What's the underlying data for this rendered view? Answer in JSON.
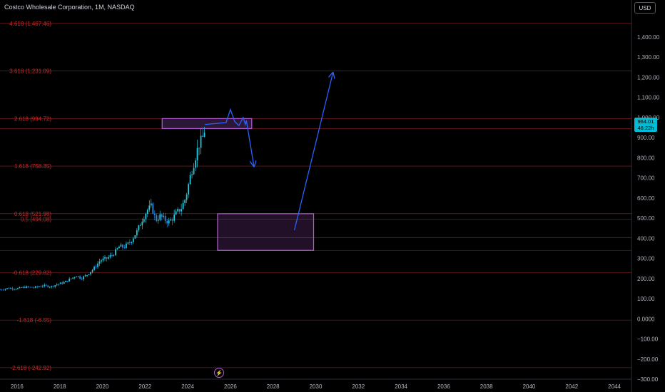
{
  "header": {
    "title": "Costco Wholesale Corporation, 1M, NASDAQ",
    "currency": "USD"
  },
  "price_tag": {
    "price": "964.01",
    "countdown": "46:22h"
  },
  "colors": {
    "up": "#26a69a",
    "candle": "#1e88e5",
    "fib": "#b22833",
    "fib_text": "#c42b2b",
    "zone": "#b55bd6",
    "arrow": "#2962ff",
    "axis_text": "#b2b5be",
    "grid": "#1a1a1a"
  },
  "icons": {
    "flash": "lightning-icon"
  },
  "chart_data": {
    "type": "candlestick",
    "title": "Costco Wholesale Corporation, 1M, NASDAQ",
    "x_axis": {
      "type": "time",
      "range": [
        2015.2,
        2044.8
      ],
      "ticks": [
        "2016",
        "2018",
        "2020",
        "2022",
        "2024",
        "2026",
        "2028",
        "2030",
        "2032",
        "2034",
        "2036",
        "2038",
        "2040",
        "2042",
        "2044"
      ]
    },
    "y_axis": {
      "range": [
        -300,
        1520
      ],
      "ticks": [
        "1,400.00",
        "1,300.00",
        "1,200.00",
        "1,100.00",
        "1,000.00",
        "900.00",
        "800.00",
        "700.00",
        "600.00",
        "500.00",
        "400.00",
        "300.00",
        "200.00",
        "100.00",
        "0.0000",
        "−100.00",
        "−200.00",
        "−300.00"
      ]
    },
    "fib_levels": [
      {
        "label": "4.618 (1,467.46)",
        "value": 1467.46
      },
      {
        "label": "3.618 (1,231.09)",
        "value": 1231.09
      },
      {
        "label": "2.618 (994.72)",
        "value": 994.72
      },
      {
        "label": "1.618 (758.35)",
        "value": 758.35
      },
      {
        "label": "0.618 (521.98)",
        "value": 521.98
      },
      {
        "label": "0.5 (494.08)",
        "value": 494.08
      },
      {
        "label": "-0.618 (229.82)",
        "value": 229.82
      },
      {
        "label": "-1.618 (-6.55)",
        "value": -6.55
      },
      {
        "label": "-2.618 (-242.92)",
        "value": -242.92
      }
    ],
    "extra_lines": [
      945,
      403,
      340
    ],
    "price_path": [
      [
        2015.2,
        145
      ],
      [
        2015.6,
        152
      ],
      [
        2016.0,
        150
      ],
      [
        2016.4,
        158
      ],
      [
        2016.8,
        155
      ],
      [
        2017.2,
        165
      ],
      [
        2017.6,
        160
      ],
      [
        2017.9,
        172
      ],
      [
        2018.2,
        180
      ],
      [
        2018.5,
        198
      ],
      [
        2018.8,
        215
      ],
      [
        2019.0,
        200
      ],
      [
        2019.3,
        220
      ],
      [
        2019.6,
        250
      ],
      [
        2019.9,
        290
      ],
      [
        2020.2,
        300
      ],
      [
        2020.5,
        320
      ],
      [
        2020.8,
        360
      ],
      [
        2021.0,
        355
      ],
      [
        2021.3,
        380
      ],
      [
        2021.6,
        430
      ],
      [
        2021.9,
        500
      ],
      [
        2022.1,
        540
      ],
      [
        2022.3,
        560
      ],
      [
        2022.5,
        490
      ],
      [
        2022.7,
        510
      ],
      [
        2022.9,
        495
      ],
      [
        2023.1,
        480
      ],
      [
        2023.3,
        500
      ],
      [
        2023.5,
        530
      ],
      [
        2023.7,
        550
      ],
      [
        2023.9,
        600
      ],
      [
        2024.1,
        700
      ],
      [
        2024.3,
        780
      ],
      [
        2024.5,
        860
      ],
      [
        2024.7,
        900
      ],
      [
        2024.85,
        964
      ]
    ],
    "zones": [
      {
        "x": [
          2022.8,
          2027.0
        ],
        "y": [
          945,
          994.72
        ]
      },
      {
        "x": [
          2025.4,
          2029.9
        ],
        "y": [
          340,
          521.98
        ]
      }
    ],
    "forecast_paths": [
      [
        [
          2024.8,
          965
        ],
        [
          2025.8,
          975
        ],
        [
          2026.0,
          1040
        ],
        [
          2026.2,
          980
        ],
        [
          2026.4,
          960
        ],
        [
          2026.6,
          1000
        ],
        [
          2026.7,
          965
        ],
        [
          2026.75,
          985
        ],
        [
          2027.1,
          760
        ]
      ],
      [
        [
          2029.0,
          440
        ],
        [
          2030.8,
          1220
        ]
      ]
    ]
  }
}
